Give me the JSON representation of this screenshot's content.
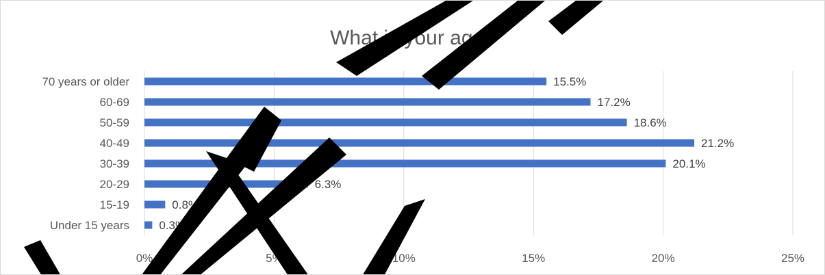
{
  "chart_data": {
    "type": "bar",
    "orientation": "horizontal",
    "title": "What is your age?",
    "categories": [
      "70 years or older",
      "60-69",
      "50-59",
      "40-49",
      "30-39",
      "20-29",
      "15-19",
      "Under 15 years"
    ],
    "values": [
      15.5,
      17.2,
      18.6,
      21.2,
      20.1,
      6.3,
      0.8,
      0.3
    ],
    "data_labels": [
      "15.5%",
      "17.2%",
      "18.6%",
      "21.2%",
      "20.1%",
      "6.3%",
      "0.8%",
      "0.3%"
    ],
    "xlim": [
      0,
      25
    ],
    "x_ticks": [
      0,
      5,
      10,
      15,
      20,
      25
    ],
    "x_tick_labels": [
      "0%",
      "5%",
      "10%",
      "15%",
      "20%",
      "25%"
    ],
    "xlabel": "",
    "ylabel": "",
    "grid": "vertical",
    "legend": "none",
    "bar_color": "#4472c4",
    "watermark": "DRAFT"
  }
}
